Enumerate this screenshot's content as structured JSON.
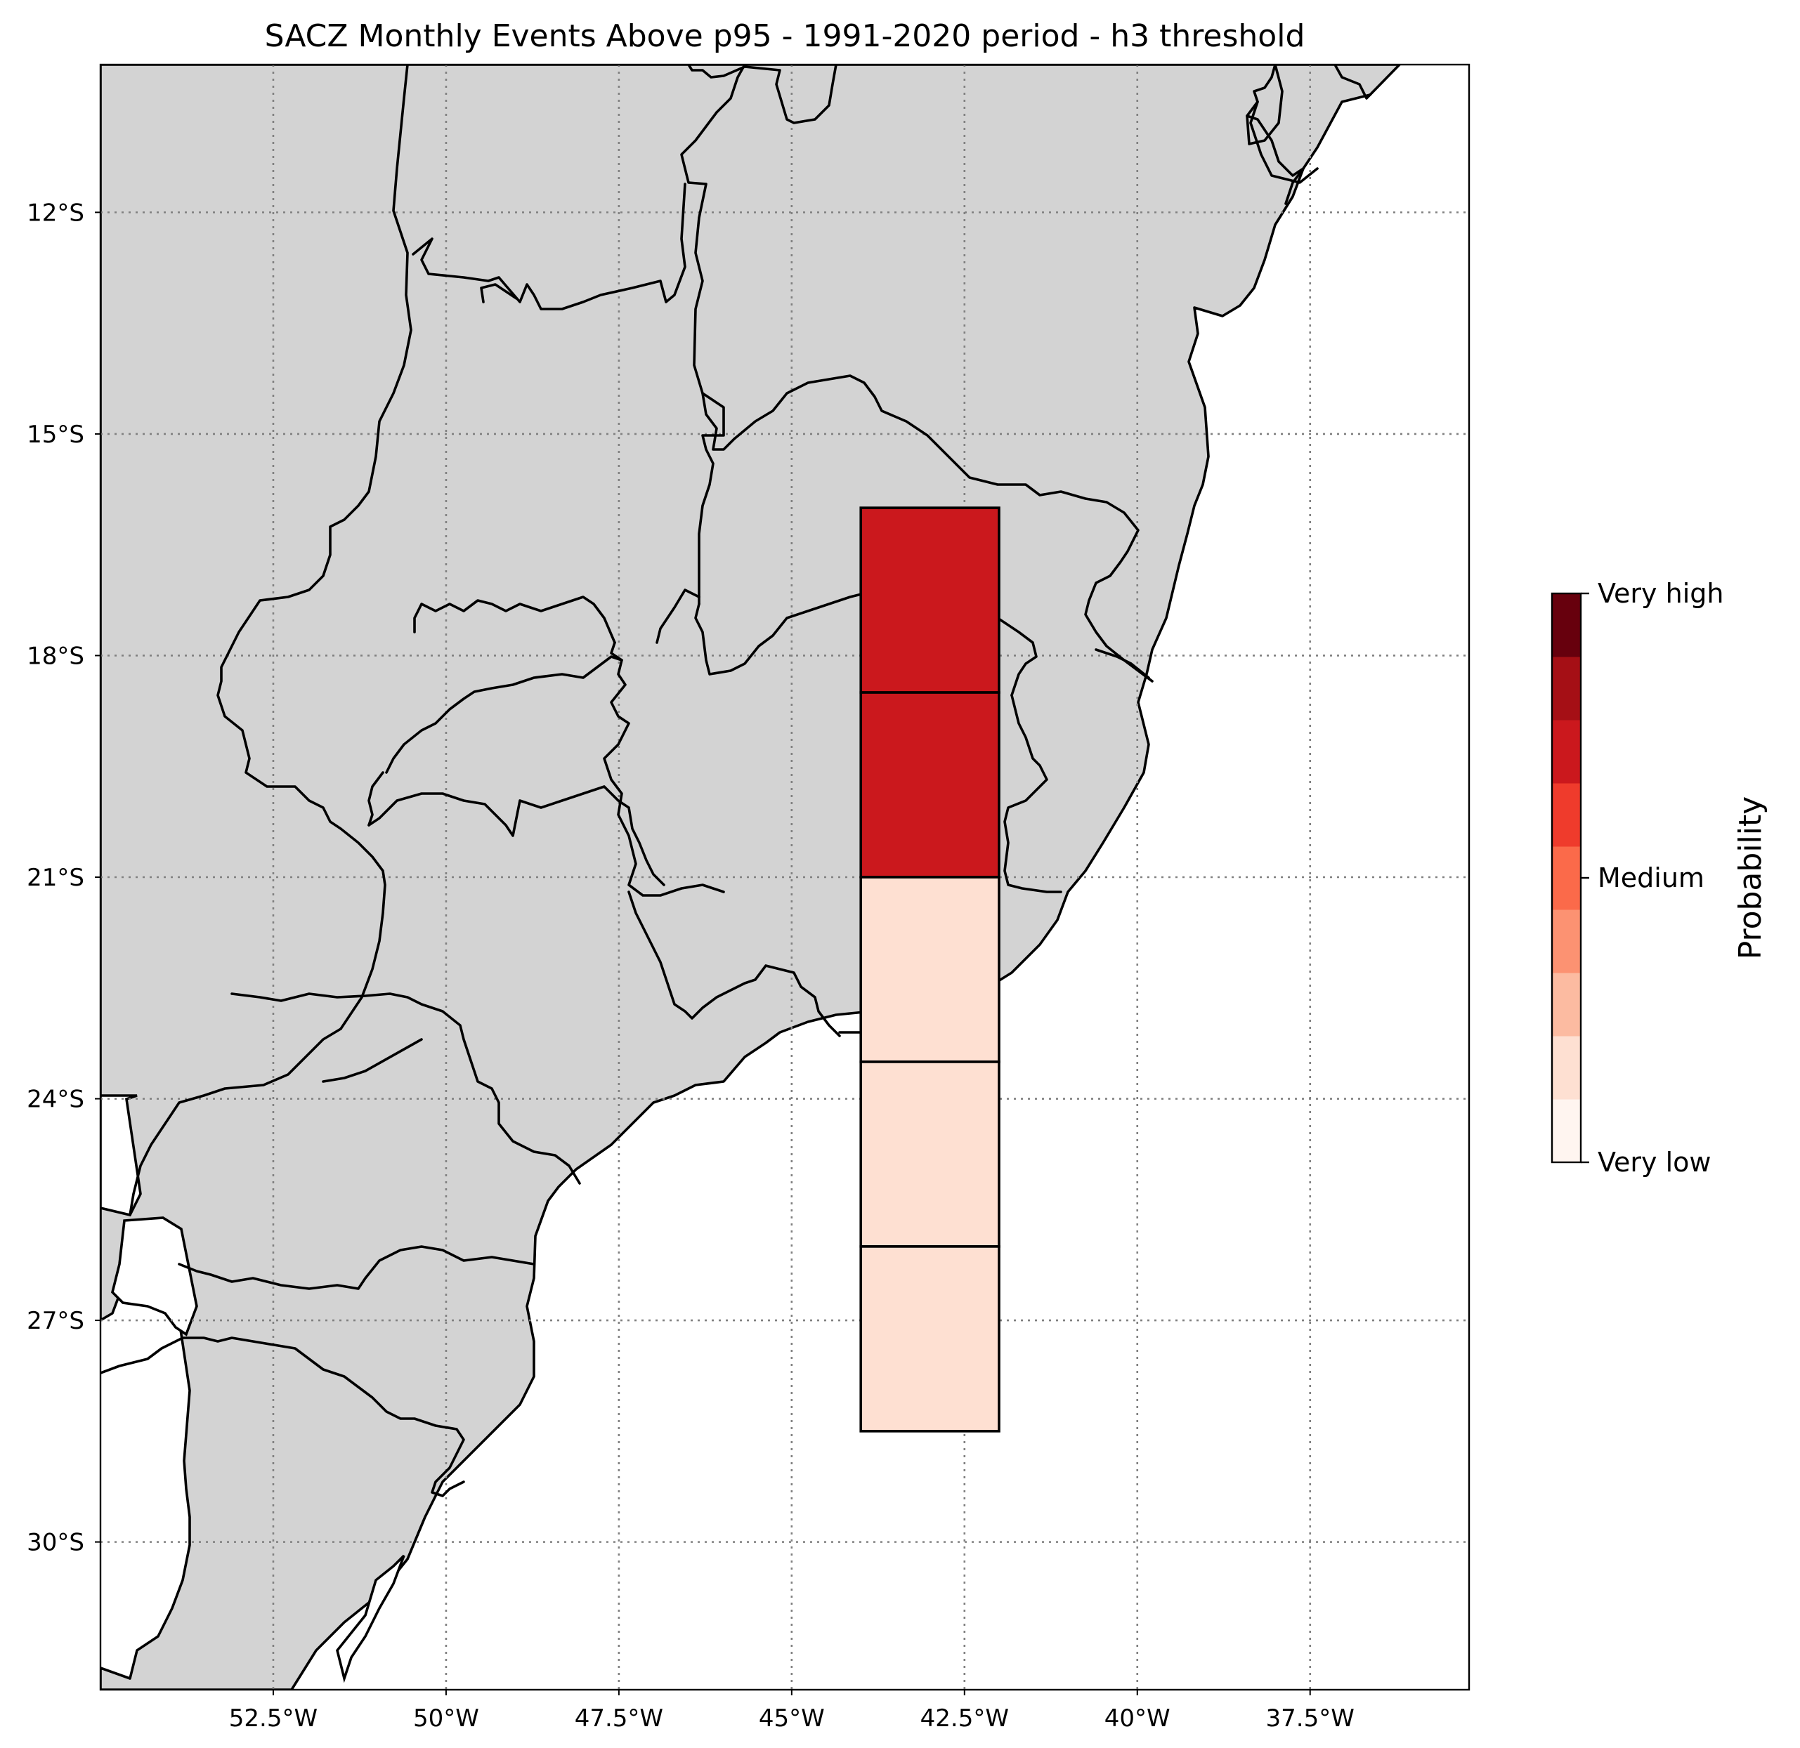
{
  "title": "SACZ Monthly Events Above p95 - 1991-2020 period - h3 threshold",
  "map": {
    "land_color": "#d3d3d3",
    "ocean_color": "#ffffff",
    "lon_ticks": [
      {
        "lon": -52.5,
        "label": "52.5°W"
      },
      {
        "lon": -50,
        "label": "50°W"
      },
      {
        "lon": -47.5,
        "label": "47.5°W"
      },
      {
        "lon": -45,
        "label": "45°W"
      },
      {
        "lon": -42.5,
        "label": "42.5°W"
      },
      {
        "lon": -40,
        "label": "40°W"
      },
      {
        "lon": -37.5,
        "label": "37.5°W"
      }
    ],
    "lat_ticks": [
      {
        "lat": -12,
        "label": "12°S"
      },
      {
        "lat": -15,
        "label": "15°S"
      },
      {
        "lat": -18,
        "label": "18°S"
      },
      {
        "lat": -21,
        "label": "21°S"
      },
      {
        "lat": -24,
        "label": "24°S"
      },
      {
        "lat": -27,
        "label": "27°S"
      },
      {
        "lat": -30,
        "label": "30°S"
      }
    ]
  },
  "chart_data": {
    "type": "heatmap",
    "title": "SACZ Monthly Events Above p95 - 1991-2020 period - h3 threshold",
    "grid": true,
    "xlim": [
      -55,
      -35.2
    ],
    "ylim": [
      -32,
      -10
    ],
    "cells": [
      {
        "lon_min": -44,
        "lon_max": -42,
        "lat_min": -18.5,
        "lat_max": -16,
        "level": 7,
        "color": "#cb181d"
      },
      {
        "lon_min": -44,
        "lon_max": -42,
        "lat_min": -21,
        "lat_max": -18.5,
        "level": 7,
        "color": "#cb181d"
      },
      {
        "lon_min": -44,
        "lon_max": -42,
        "lat_min": -23.5,
        "lat_max": -21,
        "level": 2,
        "color": "#fee0d2"
      },
      {
        "lon_min": -44,
        "lon_max": -42,
        "lat_min": -26,
        "lat_max": -23.5,
        "level": 2,
        "color": "#fee0d2"
      },
      {
        "lon_min": -44,
        "lon_max": -42,
        "lat_min": -28.5,
        "lat_max": -26,
        "level": 2,
        "color": "#fee0d2"
      }
    ],
    "colorbar": {
      "label": "Probability",
      "ticks": [
        {
          "level": 0,
          "label": "Very low"
        },
        {
          "level": 4.5,
          "label": "Medium"
        },
        {
          "level": 9,
          "label": "Very high"
        }
      ],
      "colors": [
        "#fff5f0",
        "#fee0d2",
        "#fcbba1",
        "#fc9272",
        "#fb6a4a",
        "#ef3b2c",
        "#cb181d",
        "#a50f15",
        "#67000d"
      ]
    }
  }
}
